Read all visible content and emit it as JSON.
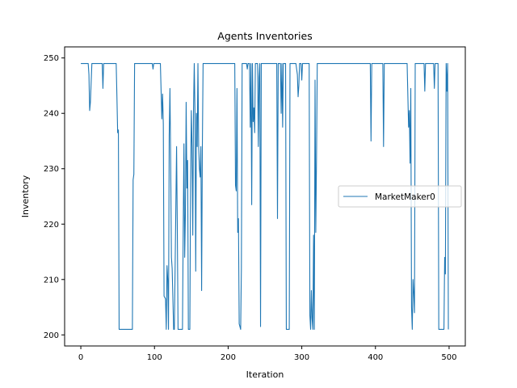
{
  "chart_data": {
    "type": "line",
    "title": "Agents Inventories",
    "xlabel": "Iteration",
    "ylabel": "Inventory",
    "xlim": [
      -22,
      522
    ],
    "ylim": [
      198,
      252
    ],
    "xticks": [
      0,
      100,
      200,
      300,
      400,
      500
    ],
    "yticks": [
      200,
      210,
      220,
      230,
      240,
      250
    ],
    "grid": false,
    "legend": "center-right",
    "series": [
      {
        "name": "MarketMaker0",
        "color": "#1f77b4",
        "points": [
          [
            0,
            249
          ],
          [
            10,
            249
          ],
          [
            11,
            247
          ],
          [
            12,
            240.5
          ],
          [
            13,
            242
          ],
          [
            15,
            249
          ],
          [
            29,
            249
          ],
          [
            30,
            244.5
          ],
          [
            31,
            249
          ],
          [
            48,
            249
          ],
          [
            49,
            243
          ],
          [
            50,
            236.5
          ],
          [
            51,
            237
          ],
          [
            52,
            201
          ],
          [
            70,
            201
          ],
          [
            71,
            228
          ],
          [
            72,
            229
          ],
          [
            73,
            249
          ],
          [
            97,
            249
          ],
          [
            98,
            248
          ],
          [
            99,
            249
          ],
          [
            108,
            249
          ],
          [
            110,
            239
          ],
          [
            111,
            243.5
          ],
          [
            112,
            238
          ],
          [
            113,
            207
          ],
          [
            115,
            206.5
          ],
          [
            116,
            201
          ],
          [
            117,
            212.5
          ],
          [
            118,
            210
          ],
          [
            119,
            201
          ],
          [
            120,
            236
          ],
          [
            121,
            244.5
          ],
          [
            122,
            231
          ],
          [
            123,
            214
          ],
          [
            124,
            212
          ],
          [
            126,
            201
          ],
          [
            127,
            201
          ],
          [
            130,
            234
          ],
          [
            131,
            219
          ],
          [
            132,
            201
          ],
          [
            138,
            201
          ],
          [
            139,
            219
          ],
          [
            140,
            234.5
          ],
          [
            141,
            214
          ],
          [
            142,
            222
          ],
          [
            143,
            242
          ],
          [
            144,
            226.5
          ],
          [
            145,
            231.5
          ],
          [
            146,
            201
          ],
          [
            148,
            201
          ],
          [
            149,
            227
          ],
          [
            150,
            240.5
          ],
          [
            151,
            234
          ],
          [
            152,
            218
          ],
          [
            153,
            240.5
          ],
          [
            154,
            249
          ],
          [
            155,
            240
          ],
          [
            156,
            211.5
          ],
          [
            157,
            240
          ],
          [
            158,
            234
          ],
          [
            159,
            249
          ],
          [
            160,
            234
          ],
          [
            161,
            230
          ],
          [
            162,
            228.5
          ],
          [
            163,
            234
          ],
          [
            164,
            208
          ],
          [
            165,
            234
          ],
          [
            166,
            249
          ],
          [
            209,
            249
          ],
          [
            210,
            227
          ],
          [
            211,
            226
          ],
          [
            212,
            244.5
          ],
          [
            213,
            218.5
          ],
          [
            214,
            221
          ],
          [
            215,
            202
          ],
          [
            217,
            201
          ],
          [
            218,
            212
          ],
          [
            219,
            249
          ],
          [
            225,
            249
          ],
          [
            226,
            248
          ],
          [
            227,
            249
          ],
          [
            229,
            249
          ],
          [
            230,
            237.5
          ],
          [
            231,
            249
          ],
          [
            232,
            223.5
          ],
          [
            233,
            249
          ],
          [
            234,
            238.5
          ],
          [
            235,
            241
          ],
          [
            236,
            236.5
          ],
          [
            237,
            249
          ],
          [
            240,
            249
          ],
          [
            241,
            234
          ],
          [
            242,
            246.5
          ],
          [
            243,
            249
          ],
          [
            244,
            201.5
          ],
          [
            245,
            249
          ],
          [
            266,
            249
          ],
          [
            267,
            221
          ],
          [
            268,
            249
          ],
          [
            271,
            249
          ],
          [
            272,
            240
          ],
          [
            273,
            249
          ],
          [
            274,
            237.5
          ],
          [
            275,
            249
          ],
          [
            278,
            249
          ],
          [
            279,
            201
          ],
          [
            283,
            201
          ],
          [
            284,
            249
          ],
          [
            292,
            249
          ],
          [
            294,
            247
          ],
          [
            295,
            243
          ],
          [
            296,
            245
          ],
          [
            297,
            249
          ],
          [
            299,
            249
          ],
          [
            300,
            246
          ],
          [
            301,
            249
          ],
          [
            310,
            249
          ],
          [
            311,
            203.5
          ],
          [
            312,
            201
          ],
          [
            313,
            208
          ],
          [
            314,
            203
          ],
          [
            315,
            201
          ],
          [
            316,
            218
          ],
          [
            317,
            201
          ],
          [
            318,
            246
          ],
          [
            319,
            218.5
          ],
          [
            320,
            232
          ],
          [
            321,
            249
          ],
          [
            393,
            249
          ],
          [
            394,
            235
          ],
          [
            395,
            249
          ],
          [
            410,
            249
          ],
          [
            411,
            234
          ],
          [
            412,
            249
          ],
          [
            443,
            249
          ],
          [
            445,
            237.5
          ],
          [
            446,
            240.5
          ],
          [
            447,
            231
          ],
          [
            448,
            244.5
          ],
          [
            449,
            205
          ],
          [
            450,
            201
          ],
          [
            451,
            210
          ],
          [
            452,
            207.5
          ],
          [
            453,
            204
          ],
          [
            454,
            249
          ],
          [
            466,
            249
          ],
          [
            467,
            244
          ],
          [
            468,
            249
          ],
          [
            479,
            249
          ],
          [
            480,
            244.5
          ],
          [
            481,
            249
          ],
          [
            485,
            249
          ],
          [
            486,
            201
          ],
          [
            493,
            201
          ],
          [
            494,
            214
          ],
          [
            495,
            211
          ],
          [
            496,
            249
          ],
          [
            497,
            244
          ],
          [
            498,
            249
          ],
          [
            499,
            201
          ]
        ]
      }
    ]
  }
}
